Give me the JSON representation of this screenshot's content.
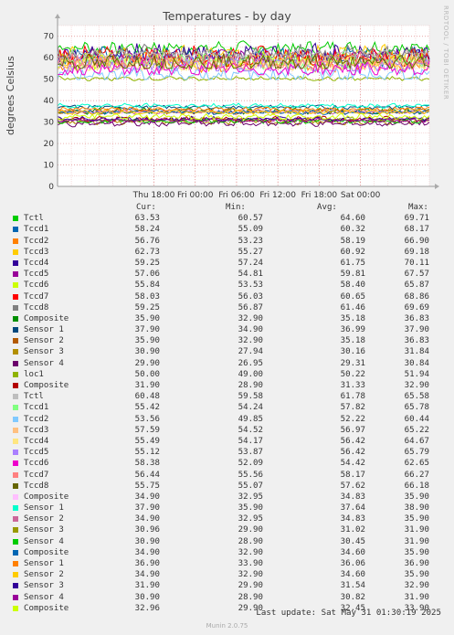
{
  "chart_data": {
    "type": "line",
    "title": "Temperatures - by day",
    "ylabel": "degrees Celsius",
    "ylim": [
      0,
      75
    ],
    "yticks": [
      0,
      10,
      20,
      30,
      40,
      50,
      60,
      70
    ],
    "xticks": [
      "Thu 18:00",
      "Fri 00:00",
      "Fri 06:00",
      "Fri 12:00",
      "Fri 18:00",
      "Sat 00:00"
    ],
    "x_range_hours": [
      -20,
      34
    ],
    "grid": true,
    "watermark": "RRDTOOL / TOBI OETIKER",
    "legend_headers": {
      "cur": "Cur:",
      "min": "Min:",
      "avg": "Avg:",
      "max": "Max:"
    },
    "series": [
      {
        "name": "Tctl",
        "color": "#00cc00",
        "cur": "63.53",
        "min": "60.57",
        "avg": "64.60",
        "max": "69.71"
      },
      {
        "name": "Tccd1",
        "color": "#0066b3",
        "cur": "58.24",
        "min": "55.09",
        "avg": "60.32",
        "max": "68.17"
      },
      {
        "name": "Tccd2",
        "color": "#ff8000",
        "cur": "56.76",
        "min": "53.23",
        "avg": "58.19",
        "max": "66.90"
      },
      {
        "name": "Tccd3",
        "color": "#ffcc00",
        "cur": "62.73",
        "min": "55.27",
        "avg": "60.92",
        "max": "69.18"
      },
      {
        "name": "Tccd4",
        "color": "#330099",
        "cur": "59.25",
        "min": "57.24",
        "avg": "61.75",
        "max": "70.11"
      },
      {
        "name": "Tccd5",
        "color": "#990099",
        "cur": "57.06",
        "min": "54.81",
        "avg": "59.81",
        "max": "67.57"
      },
      {
        "name": "Tccd6",
        "color": "#ccff00",
        "cur": "55.84",
        "min": "53.53",
        "avg": "58.40",
        "max": "65.87"
      },
      {
        "name": "Tccd7",
        "color": "#ff0000",
        "cur": "58.03",
        "min": "56.03",
        "avg": "60.65",
        "max": "68.86"
      },
      {
        "name": "Tccd8",
        "color": "#808080",
        "cur": "59.25",
        "min": "56.87",
        "avg": "61.46",
        "max": "69.69"
      },
      {
        "name": "Composite",
        "color": "#008f00",
        "cur": "35.90",
        "min": "32.90",
        "avg": "35.18",
        "max": "36.83"
      },
      {
        "name": "Sensor 1",
        "color": "#00487d",
        "cur": "37.90",
        "min": "34.90",
        "avg": "36.99",
        "max": "37.90"
      },
      {
        "name": "Sensor 2",
        "color": "#b35a00",
        "cur": "35.90",
        "min": "32.90",
        "avg": "35.18",
        "max": "36.83"
      },
      {
        "name": "Sensor 3",
        "color": "#b38f00",
        "cur": "30.90",
        "min": "27.94",
        "avg": "30.16",
        "max": "31.84"
      },
      {
        "name": "Sensor 4",
        "color": "#6b006b",
        "cur": "29.90",
        "min": "26.95",
        "avg": "29.31",
        "max": "30.84"
      },
      {
        "name": "loc1",
        "color": "#8fb300",
        "cur": "50.00",
        "min": "49.00",
        "avg": "50.22",
        "max": "51.94"
      },
      {
        "name": "Composite",
        "color": "#b30000",
        "cur": "31.90",
        "min": "28.90",
        "avg": "31.33",
        "max": "32.90"
      },
      {
        "name": "Tctl",
        "color": "#bebebe",
        "cur": "60.48",
        "min": "59.58",
        "avg": "61.78",
        "max": "65.58"
      },
      {
        "name": "Tccd1",
        "color": "#80ff80",
        "cur": "55.42",
        "min": "54.24",
        "avg": "57.82",
        "max": "65.78"
      },
      {
        "name": "Tccd2",
        "color": "#80c9ff",
        "cur": "53.56",
        "min": "49.85",
        "avg": "52.22",
        "max": "60.44"
      },
      {
        "name": "Tccd3",
        "color": "#ffc080",
        "cur": "57.59",
        "min": "54.52",
        "avg": "56.97",
        "max": "65.22"
      },
      {
        "name": "Tccd4",
        "color": "#ffe680",
        "cur": "55.49",
        "min": "54.17",
        "avg": "56.42",
        "max": "64.67"
      },
      {
        "name": "Tccd5",
        "color": "#aa80ff",
        "cur": "55.12",
        "min": "53.87",
        "avg": "56.42",
        "max": "65.79"
      },
      {
        "name": "Tccd6",
        "color": "#ee00cc",
        "cur": "58.38",
        "min": "52.09",
        "avg": "54.42",
        "max": "62.65"
      },
      {
        "name": "Tccd7",
        "color": "#ff8080",
        "cur": "56.44",
        "min": "55.56",
        "avg": "58.17",
        "max": "66.27"
      },
      {
        "name": "Tccd8",
        "color": "#666600",
        "cur": "55.75",
        "min": "55.07",
        "avg": "57.62",
        "max": "66.18"
      },
      {
        "name": "Composite",
        "color": "#ffbfff",
        "cur": "34.90",
        "min": "32.95",
        "avg": "34.83",
        "max": "35.90"
      },
      {
        "name": "Sensor 1",
        "color": "#00ffcc",
        "cur": "37.90",
        "min": "35.90",
        "avg": "37.64",
        "max": "38.90"
      },
      {
        "name": "Sensor 2",
        "color": "#cc6699",
        "cur": "34.90",
        "min": "32.95",
        "avg": "34.83",
        "max": "35.90"
      },
      {
        "name": "Sensor 3",
        "color": "#999900",
        "cur": "30.96",
        "min": "29.90",
        "avg": "31.02",
        "max": "31.90"
      },
      {
        "name": "Sensor 4",
        "color": "#00cc00",
        "cur": "30.90",
        "min": "28.90",
        "avg": "30.45",
        "max": "31.90"
      },
      {
        "name": "Composite",
        "color": "#0066b3",
        "cur": "34.90",
        "min": "32.90",
        "avg": "34.60",
        "max": "35.90"
      },
      {
        "name": "Sensor 1",
        "color": "#ff8000",
        "cur": "36.90",
        "min": "33.90",
        "avg": "36.06",
        "max": "36.90"
      },
      {
        "name": "Sensor 2",
        "color": "#ffcc00",
        "cur": "34.90",
        "min": "32.90",
        "avg": "34.60",
        "max": "35.90"
      },
      {
        "name": "Sensor 3",
        "color": "#330099",
        "cur": "31.90",
        "min": "29.90",
        "avg": "31.54",
        "max": "32.90"
      },
      {
        "name": "Sensor 4",
        "color": "#990099",
        "cur": "30.90",
        "min": "28.90",
        "avg": "30.82",
        "max": "31.90"
      },
      {
        "name": "Composite",
        "color": "#ccff00",
        "cur": "32.96",
        "min": "29.90",
        "avg": "32.45",
        "max": "33.90"
      }
    ]
  },
  "footer": {
    "last_update": "Last update: Sat May 31 01:30:19 2025",
    "munin_version": "Munin 2.0.75"
  }
}
